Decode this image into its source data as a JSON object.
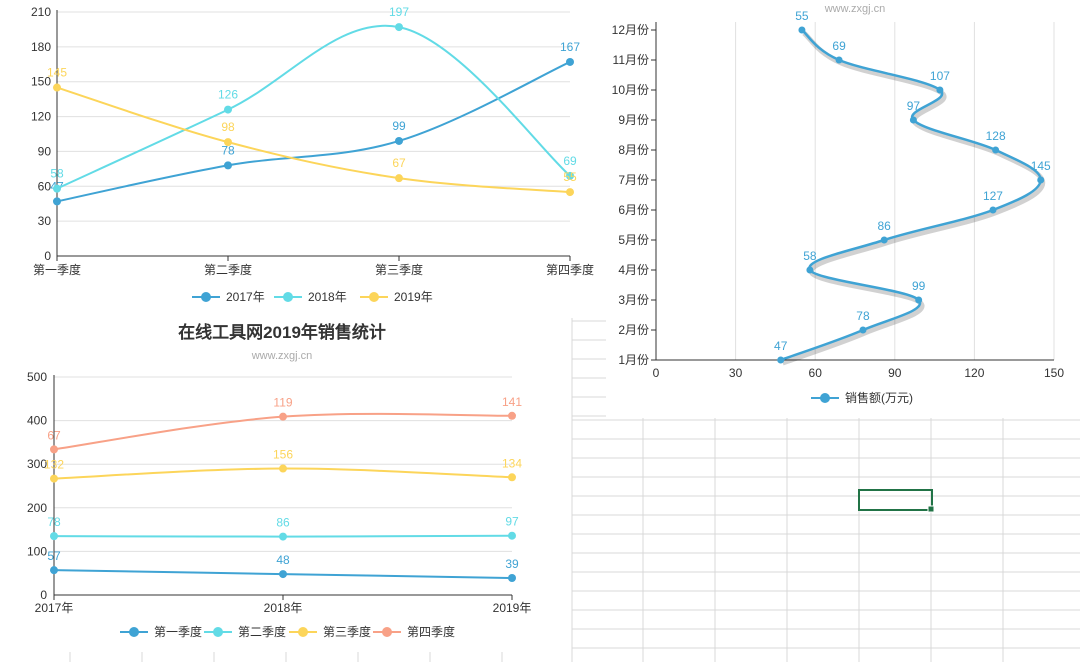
{
  "colors": {
    "s2017": "#3fa3d4",
    "s2018": "#62dbe6",
    "s2019": "#fcd55a",
    "q4": "#f8a187",
    "sel": "#217346"
  },
  "chart_data": [
    {
      "id": "chart1",
      "type": "line",
      "smooth": true,
      "categories": [
        "第一季度",
        "第二季度",
        "第三季度",
        "第四季度"
      ],
      "ylim": [
        0,
        210
      ],
      "yticks": [
        0,
        30,
        60,
        90,
        120,
        150,
        180,
        210
      ],
      "grid": true,
      "legend_position": "bottom",
      "series": [
        {
          "name": "2017年",
          "values": [
            47,
            78,
            99,
            167
          ],
          "labels": [
            "47",
            "78",
            "99",
            "167"
          ]
        },
        {
          "name": "2018年",
          "values": [
            58,
            126,
            197,
            69
          ],
          "labels": [
            "58",
            "126",
            "197",
            "69"
          ]
        },
        {
          "name": "2019年",
          "values": [
            145,
            98,
            67,
            55
          ],
          "labels": [
            "145",
            "98",
            "67",
            "55"
          ]
        }
      ]
    },
    {
      "id": "chart2",
      "type": "line",
      "smooth": true,
      "orientation": "vertical-categories",
      "subtitle": "www.zxgj.cn",
      "categories": [
        "1月份",
        "2月份",
        "3月份",
        "4月份",
        "5月份",
        "6月份",
        "7月份",
        "8月份",
        "9月份",
        "10月份",
        "11月份",
        "12月份"
      ],
      "xlim": [
        0,
        150
      ],
      "xticks": [
        0,
        30,
        60,
        90,
        120,
        150
      ],
      "grid": true,
      "legend_position": "bottom",
      "series": [
        {
          "name": "销售额(万元)",
          "values": [
            47,
            78,
            99,
            58,
            86,
            127,
            145,
            128,
            97,
            107,
            69,
            55
          ],
          "labels": [
            "47",
            "78",
            "99",
            "58",
            "86",
            "127",
            "145",
            "128",
            "97",
            "107",
            "69",
            "55"
          ]
        }
      ]
    },
    {
      "id": "chart3",
      "type": "line",
      "smooth": true,
      "title": "在线工具网2019年销售统计",
      "subtitle": "www.zxgj.cn",
      "categories": [
        "2017年",
        "2018年",
        "2019年"
      ],
      "ylim": [
        0,
        500
      ],
      "yticks": [
        0,
        100,
        200,
        300,
        400,
        500
      ],
      "grid": true,
      "legend_position": "bottom",
      "series": [
        {
          "name": "第一季度",
          "values": [
            57,
            48,
            39
          ],
          "labels": [
            "57",
            "48",
            "39"
          ]
        },
        {
          "name": "第二季度",
          "values": [
            78,
            86,
            97
          ],
          "labels": [
            "78",
            "86",
            "97"
          ]
        },
        {
          "name": "第三季度",
          "values": [
            132,
            156,
            134
          ],
          "labels": [
            "132",
            "156",
            "134"
          ]
        },
        {
          "name": "第四季度",
          "values": [
            67,
            119,
            141
          ],
          "labels": [
            "67",
            "119",
            "141"
          ]
        }
      ]
    }
  ]
}
